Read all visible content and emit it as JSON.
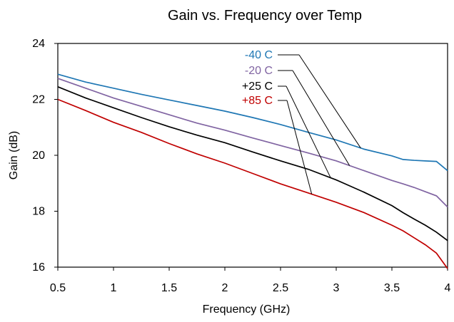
{
  "chart_data": {
    "type": "line",
    "title": "Gain vs. Frequency over Temp",
    "xlabel": "Frequency (GHz)",
    "ylabel": "Gain (dB)",
    "xlim": [
      0.5,
      4
    ],
    "ylim": [
      16,
      24
    ],
    "xticks": [
      "0.5",
      "1",
      "1.5",
      "2",
      "2.5",
      "3",
      "3.5",
      "4"
    ],
    "yticks": [
      "16",
      "18",
      "20",
      "22",
      "24"
    ],
    "grid": false,
    "legend": "inline callouts with leader lines",
    "series": [
      {
        "name": "-40 C",
        "color": "#1f77b4",
        "label_anchor_x": 3.22,
        "x": [
          0.5,
          0.75,
          1.0,
          1.25,
          1.5,
          1.75,
          2.0,
          2.25,
          2.5,
          2.75,
          3.0,
          3.25,
          3.5,
          3.6,
          3.7,
          3.8,
          3.9,
          4.0
        ],
        "y": [
          22.9,
          22.62,
          22.4,
          22.18,
          21.98,
          21.78,
          21.58,
          21.35,
          21.1,
          20.82,
          20.55,
          20.22,
          19.98,
          19.85,
          19.82,
          19.8,
          19.78,
          19.45
        ]
      },
      {
        "name": "-20 C",
        "color": "#8064a2",
        "label_anchor_x": 3.12,
        "x": [
          0.5,
          0.75,
          1.0,
          1.25,
          1.5,
          1.75,
          2.0,
          2.25,
          2.5,
          2.75,
          3.0,
          3.25,
          3.5,
          3.6,
          3.7,
          3.8,
          3.9,
          4.0
        ],
        "y": [
          22.75,
          22.4,
          22.05,
          21.75,
          21.45,
          21.15,
          20.9,
          20.62,
          20.35,
          20.08,
          19.8,
          19.45,
          19.1,
          18.98,
          18.85,
          18.7,
          18.55,
          18.15
        ]
      },
      {
        "name": "+25 C",
        "color": "#000000",
        "label_anchor_x": 2.95,
        "x": [
          0.5,
          0.75,
          1.0,
          1.25,
          1.5,
          1.75,
          2.0,
          2.25,
          2.5,
          2.75,
          3.0,
          3.25,
          3.5,
          3.6,
          3.7,
          3.8,
          3.9,
          4.0
        ],
        "y": [
          22.45,
          22.05,
          21.7,
          21.35,
          21.02,
          20.72,
          20.45,
          20.12,
          19.8,
          19.5,
          19.12,
          18.68,
          18.2,
          17.95,
          17.72,
          17.5,
          17.25,
          16.95
        ]
      },
      {
        "name": "+85 C",
        "color": "#c00000",
        "label_anchor_x": 2.78,
        "x": [
          0.5,
          0.75,
          1.0,
          1.25,
          1.5,
          1.75,
          2.0,
          2.25,
          2.5,
          2.75,
          3.0,
          3.25,
          3.5,
          3.6,
          3.7,
          3.8,
          3.9,
          4.0
        ],
        "y": [
          22.0,
          21.6,
          21.18,
          20.82,
          20.42,
          20.05,
          19.72,
          19.35,
          18.98,
          18.65,
          18.32,
          17.95,
          17.5,
          17.3,
          17.05,
          16.8,
          16.5,
          15.95
        ]
      }
    ]
  }
}
